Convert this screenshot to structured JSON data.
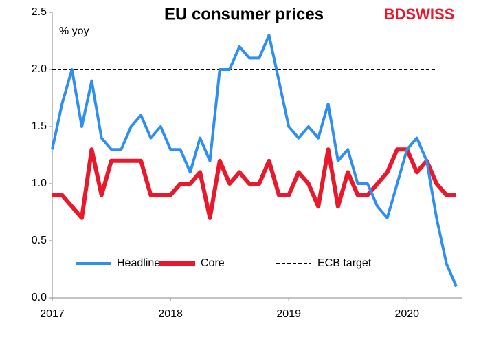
{
  "chart_data": {
    "type": "line",
    "title": "EU consumer prices",
    "y_label": "% yoy",
    "logo": "BDSWISS",
    "categories": [
      "2017",
      null,
      null,
      null,
      null,
      null,
      null,
      null,
      null,
      null,
      null,
      null,
      "2018",
      null,
      null,
      null,
      null,
      null,
      null,
      null,
      null,
      null,
      null,
      null,
      "2019",
      null,
      null,
      null,
      null,
      null,
      null,
      null,
      null,
      null,
      null,
      null,
      "2020",
      null,
      null,
      null,
      null,
      null
    ],
    "series": [
      {
        "name": "Headline",
        "color": "#2e8ff0",
        "values": [
          1.3,
          1.7,
          2.0,
          1.5,
          1.9,
          1.4,
          1.3,
          1.3,
          1.5,
          1.6,
          1.4,
          1.5,
          1.3,
          1.3,
          1.1,
          1.4,
          1.2,
          2.0,
          2.0,
          2.2,
          2.1,
          2.1,
          2.3,
          1.9,
          1.5,
          1.4,
          1.5,
          1.4,
          1.7,
          1.2,
          1.3,
          1.0,
          1.0,
          0.8,
          0.7,
          1.0,
          1.3,
          1.4,
          1.2,
          0.7,
          0.3,
          0.1
        ]
      },
      {
        "name": "Core",
        "color": "#e8192c",
        "values": [
          0.9,
          0.9,
          0.8,
          0.7,
          1.3,
          0.9,
          1.2,
          1.2,
          1.2,
          1.2,
          0.9,
          0.9,
          0.9,
          1.0,
          1.0,
          1.1,
          0.7,
          1.2,
          1.0,
          1.1,
          1.0,
          1.0,
          1.2,
          0.9,
          0.9,
          1.1,
          1.0,
          0.8,
          1.3,
          0.8,
          1.1,
          0.9,
          0.9,
          1.0,
          1.1,
          1.3,
          1.3,
          1.1,
          1.2,
          1.0,
          0.9,
          0.9
        ]
      }
    ],
    "target": {
      "name": "ECB target",
      "value": 2.0,
      "color": "#000000"
    },
    "ylim": [
      0,
      2.5
    ],
    "yticks": [
      {
        "value": 0,
        "label": "0.0"
      },
      0.5,
      {
        "value": 1,
        "label": "1.0"
      },
      1.5,
      {
        "value": 2,
        "label": "2.0"
      },
      2.5
    ],
    "grid": false,
    "legend": "bottom"
  }
}
